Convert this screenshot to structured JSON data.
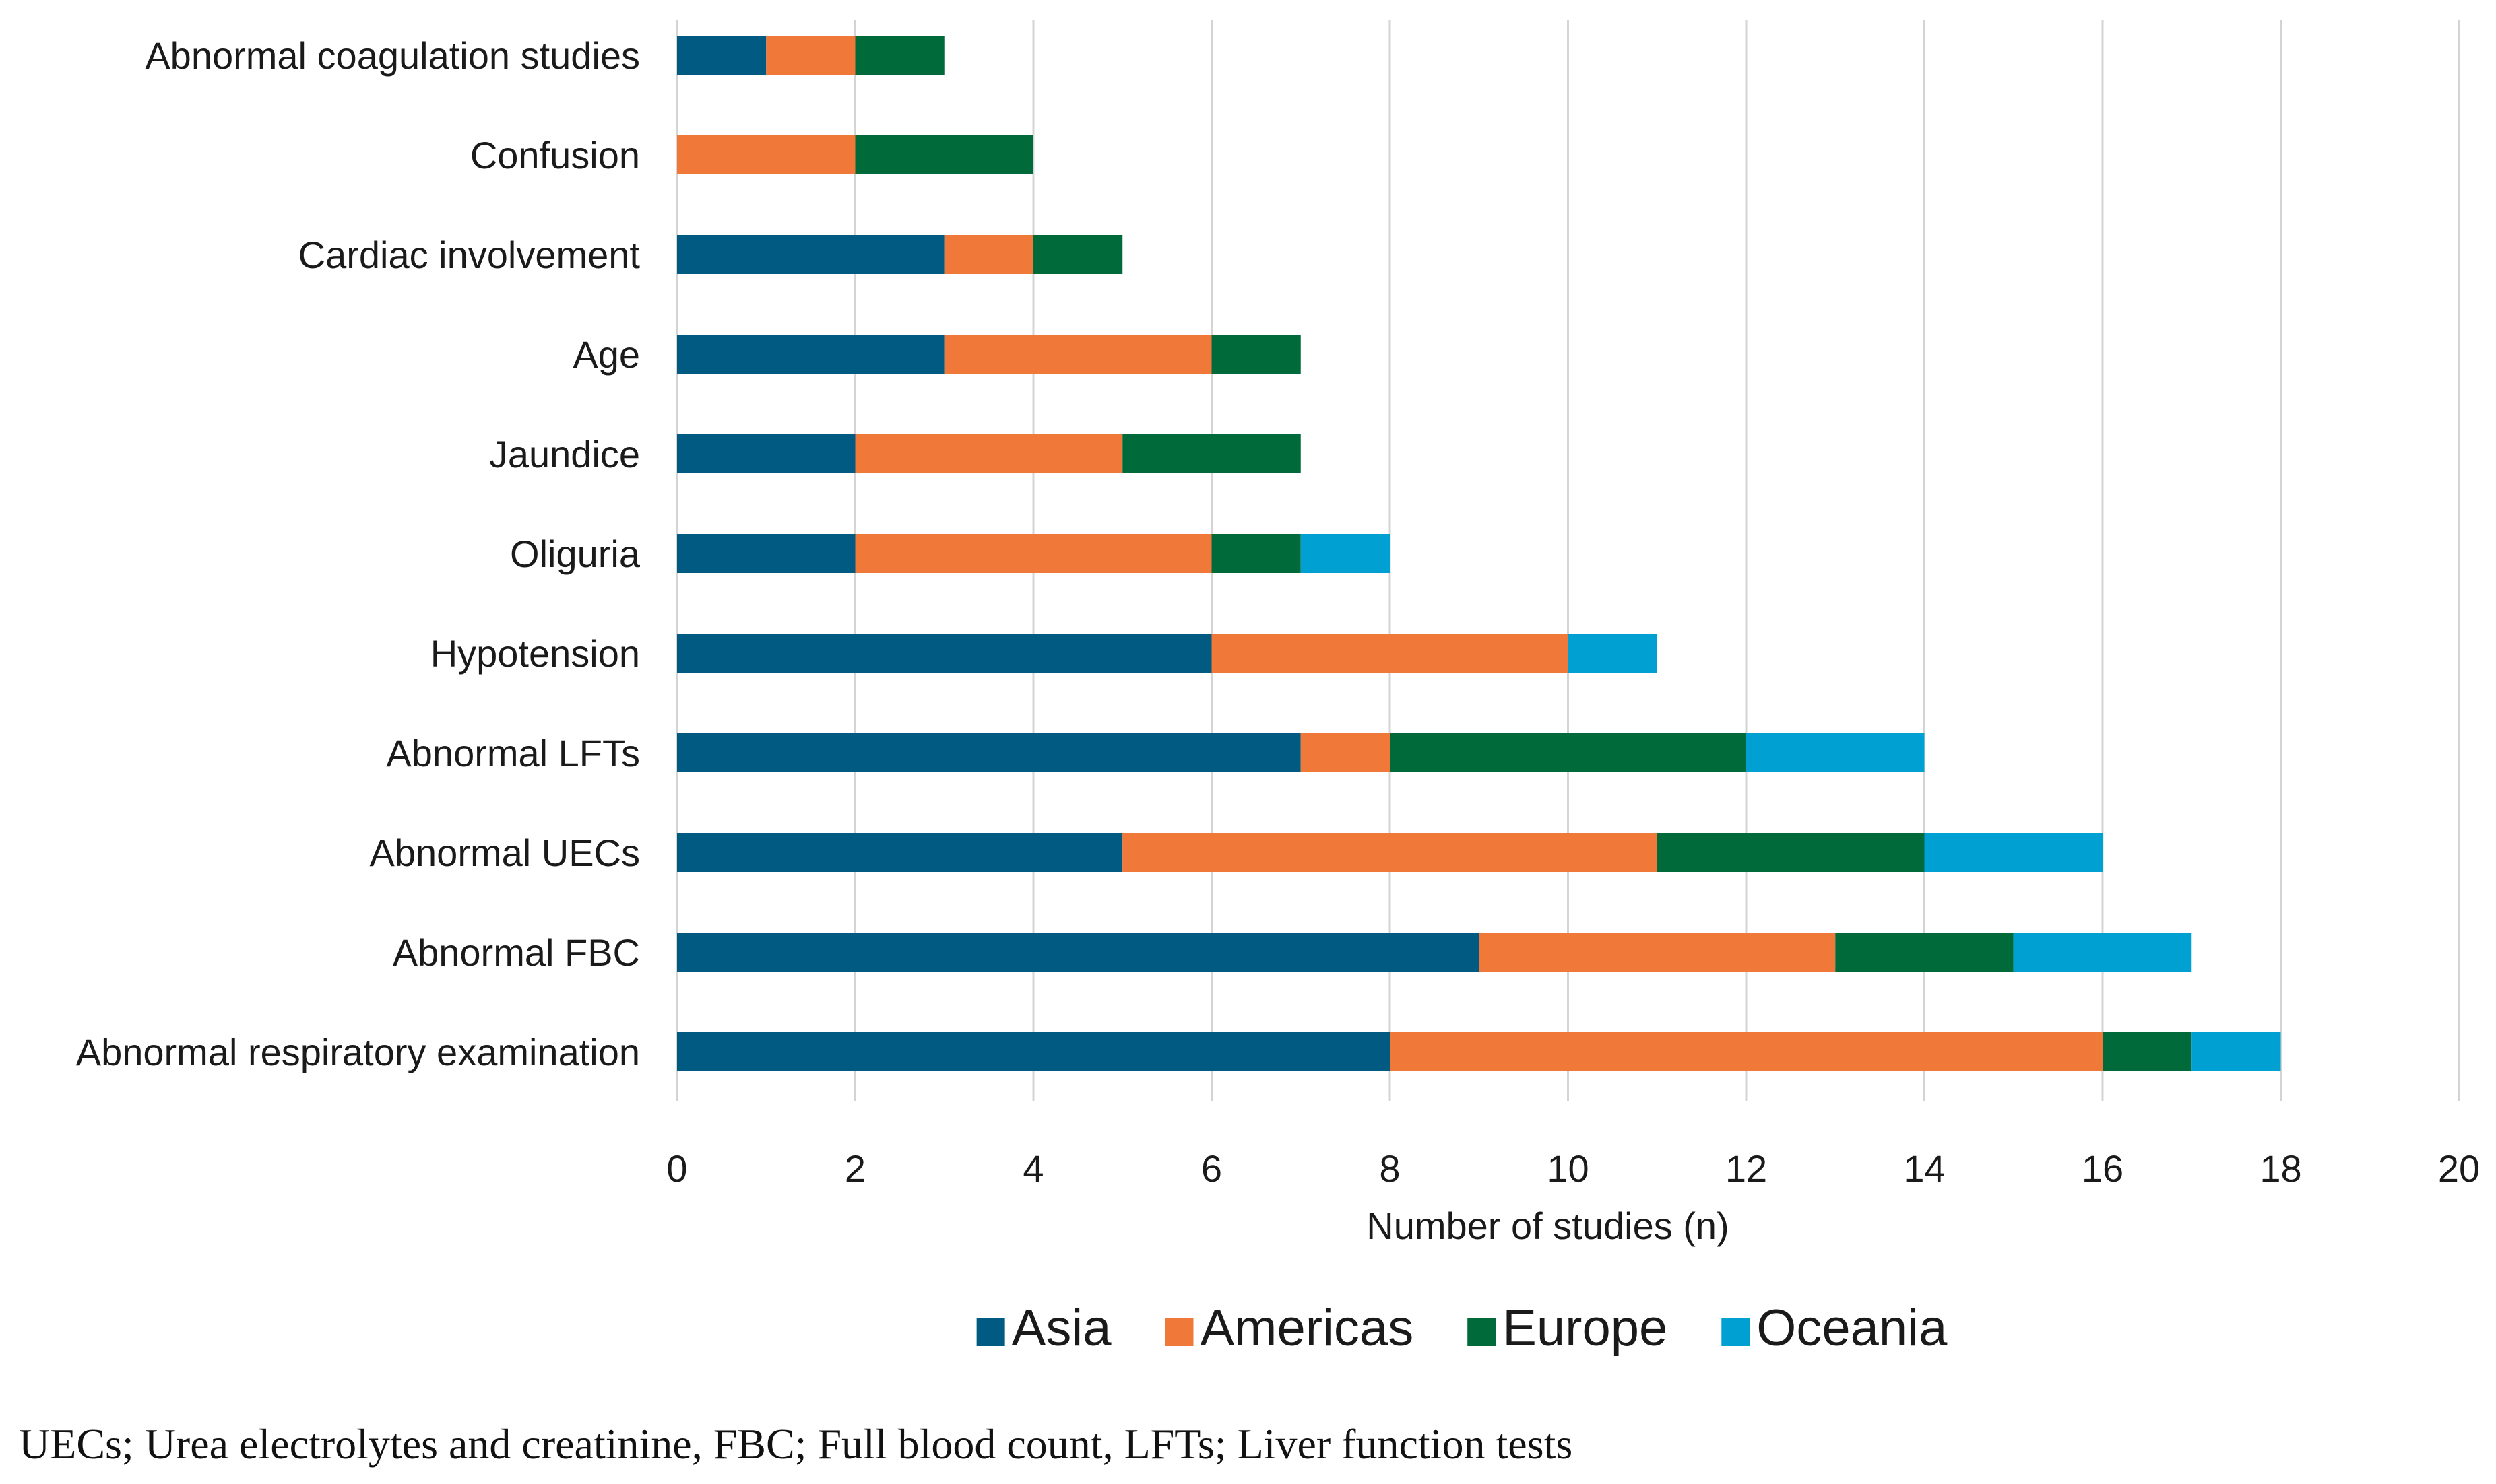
{
  "chart_data": {
    "type": "bar",
    "orientation": "horizontal",
    "stacked": true,
    "title": "",
    "xlabel": "Number of studies (n)",
    "ylabel": "",
    "xlim": [
      0,
      20
    ],
    "x_ticks": [
      "0",
      "2",
      "4",
      "6",
      "8",
      "10",
      "12",
      "14",
      "16",
      "18",
      "20"
    ],
    "grid": true,
    "legend_position": "bottom",
    "categories": [
      "Abnormal coagulation studies",
      "Confusion",
      "Cardiac involvement",
      "Age",
      "Jaundice",
      "Oliguria",
      "Hypotension",
      "Abnormal LFTs",
      "Abnormal UECs",
      "Abnormal FBC",
      "Abnormal respiratory examination"
    ],
    "series": [
      {
        "name": "Asia",
        "color": "#005a82",
        "values": [
          1,
          0,
          3,
          3,
          2,
          2,
          6,
          7,
          5,
          9,
          8
        ]
      },
      {
        "name": "Americas",
        "color": "#f07838",
        "values": [
          1,
          2,
          1,
          3,
          3,
          4,
          4,
          1,
          6,
          4,
          8
        ]
      },
      {
        "name": "Europe",
        "color": "#006a3a",
        "values": [
          1,
          2,
          1,
          1,
          2,
          1,
          0,
          4,
          3,
          2,
          1
        ]
      },
      {
        "name": "Oceania",
        "color": "#00a0d2",
        "values": [
          0,
          0,
          0,
          0,
          0,
          1,
          1,
          2,
          2,
          2,
          1
        ]
      }
    ]
  },
  "footnote": "UECs; Urea electrolytes and creatinine, FBC; Full blood count, LFTs; Liver function tests"
}
